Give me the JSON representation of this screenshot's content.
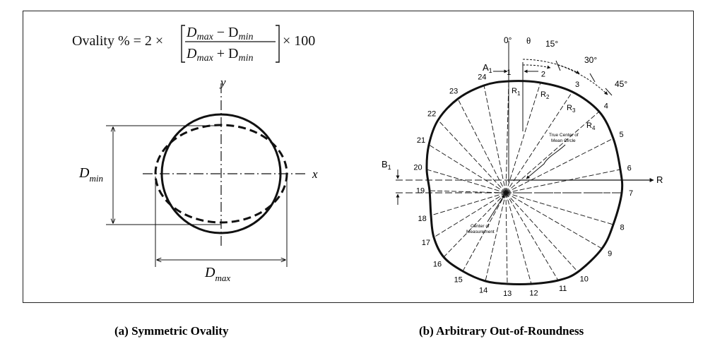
{
  "panel_a": {
    "formula": {
      "lhs": "Ovality % = 2 ×",
      "numerator": "D",
      "num_max_sub": "max",
      "num_minus": " − D",
      "num_min_sub": "min",
      "denominator": "D",
      "den_max_sub": "max",
      "den_plus": " + D",
      "den_min_sub": "min",
      "rhs": "× 100"
    },
    "axis_y": "y",
    "axis_x": "x",
    "dmin": {
      "main": "D",
      "sub": "min"
    },
    "dmax": {
      "main": "D",
      "sub": "max"
    },
    "caption": "(a) Symmetric Ovality"
  },
  "panel_b": {
    "angles": [
      "0°",
      "θ",
      "15°",
      "30°",
      "45°"
    ],
    "a1": {
      "main": "A",
      "sub": "1"
    },
    "b1": {
      "main": "B",
      "sub": "1"
    },
    "radii": [
      {
        "main": "R",
        "sub": "1"
      },
      {
        "main": "R",
        "sub": "2"
      },
      {
        "main": "R",
        "sub": "3"
      },
      {
        "main": "R",
        "sub": "4"
      }
    ],
    "r_axis": "R",
    "true_center_1": "True Center of",
    "true_center_2": "Mean Circle",
    "center_meas_1": "Center of",
    "center_meas_2": "Measurement",
    "points": [
      "1",
      "2",
      "3",
      "4",
      "5",
      "6",
      "7",
      "8",
      "9",
      "10",
      "11",
      "12",
      "13",
      "14",
      "15",
      "16",
      "17",
      "18",
      "19",
      "20",
      "21",
      "22",
      "23",
      "24"
    ],
    "caption": "(b) Arbitrary Out-of-Roundness"
  }
}
